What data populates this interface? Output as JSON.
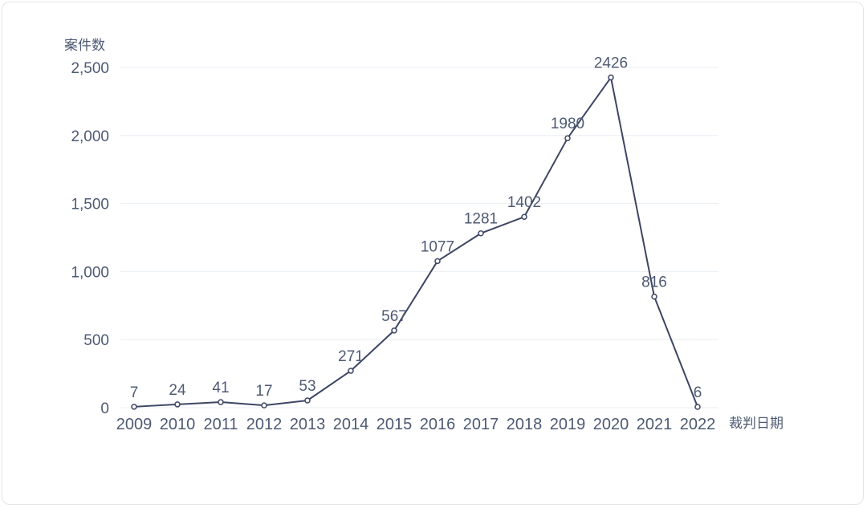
{
  "page": {
    "background": "#ffffff",
    "card_border": "#e3e5ea"
  },
  "chart_data": {
    "type": "line",
    "title": "",
    "ylabel": "案件数",
    "xlabel": "裁判日期",
    "categories": [
      "2009",
      "2010",
      "2011",
      "2012",
      "2013",
      "2014",
      "2015",
      "2016",
      "2017",
      "2018",
      "2019",
      "2020",
      "2021",
      "2022"
    ],
    "values": [
      7,
      24,
      41,
      17,
      53,
      271,
      567,
      1077,
      1281,
      1402,
      1980,
      2426,
      816,
      6
    ],
    "data_labels": [
      "7",
      "24",
      "41",
      "17",
      "53",
      "271",
      "567",
      "1077",
      "1281",
      "1402",
      "1980",
      "2426",
      "816",
      "6"
    ],
    "ylim": [
      0,
      2500
    ],
    "yticks": [
      0,
      500,
      1000,
      1500,
      2000,
      2500
    ],
    "ytick_labels": [
      "0",
      "500",
      "1,000",
      "1,500",
      "2,000",
      "2,500"
    ],
    "grid": "horizontal",
    "legend": "none",
    "colors": {
      "line": "#3d4663",
      "marker_fill": "#ffffff",
      "text": "#4e5a73",
      "grid": "#e9edf3"
    }
  }
}
